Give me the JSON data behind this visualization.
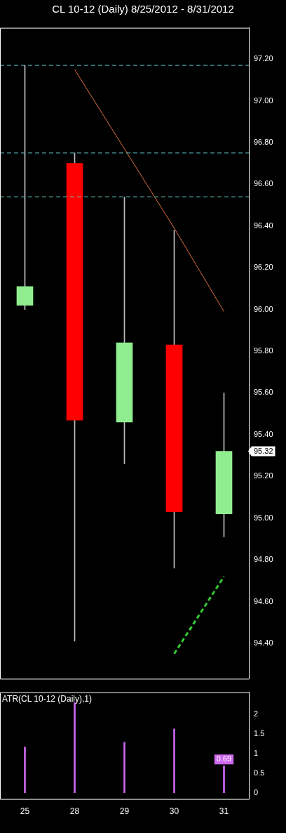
{
  "chart_data": [
    {
      "type": "candlestick",
      "title": "CL 10-12 (Daily)  8/25/2012 - 8/31/2012",
      "categories": [
        "25",
        "28",
        "29",
        "30",
        "31"
      ],
      "ohlc": [
        [
          96.02,
          97.17,
          96.0,
          96.11
        ],
        [
          96.7,
          96.75,
          94.41,
          95.47
        ],
        [
          95.46,
          96.54,
          95.26,
          95.84
        ],
        [
          95.83,
          96.38,
          94.76,
          95.03
        ],
        [
          95.02,
          95.6,
          94.91,
          95.32
        ]
      ],
      "colors": [
        "#90ee90",
        "#ff0000",
        "#90ee90",
        "#ff0000",
        "#90ee90"
      ],
      "series": [
        {
          "type": "line",
          "color": "#e07040",
          "values": [
            null,
            97.15,
            96.77,
            96.39,
            95.99
          ]
        },
        {
          "type": "line",
          "color": "#33cc33",
          "line_style": "dashed",
          "values": [
            null,
            null,
            null,
            94.35,
            94.72
          ]
        }
      ],
      "ref_lines": [
        {
          "axis": "y",
          "value": 97.17,
          "color": "#66cccc",
          "line_style": "dashed"
        },
        {
          "axis": "y",
          "value": 96.75,
          "color": "#66cccc",
          "line_style": "dashed"
        },
        {
          "axis": "y",
          "value": 96.54,
          "color": "#66cccc",
          "line_style": "dashed"
        }
      ],
      "annotations": [
        "95.32"
      ],
      "ylim": [
        94.23,
        97.35
      ],
      "yticks": [
        {
          "value": 94.4,
          "label": "94.40"
        },
        {
          "value": 94.6,
          "label": "94.60"
        },
        {
          "value": 94.8,
          "label": "94.80"
        },
        {
          "value": 95.0,
          "label": "95.00"
        },
        {
          "value": 95.2,
          "label": "95.20"
        },
        {
          "value": 95.4,
          "label": "95.40"
        },
        {
          "value": 95.6,
          "label": "95.60"
        },
        {
          "value": 95.8,
          "label": "95.80"
        },
        {
          "value": 96.0,
          "label": "96.00"
        },
        {
          "value": 96.2,
          "label": "96.20"
        },
        {
          "value": 96.4,
          "label": "96.40"
        },
        {
          "value": 96.6,
          "label": "96.60"
        },
        {
          "value": 96.8,
          "label": "96.80"
        },
        {
          "value": 97.0,
          "label": "97.00"
        },
        {
          "value": 97.2,
          "label": "97.20"
        }
      ],
      "tick_labels": "y",
      "grid": false,
      "legend": false
    },
    {
      "type": "bar",
      "title": "ATR(CL 10-12 (Daily),1)",
      "categories": [
        "25",
        "28",
        "29",
        "30",
        "31"
      ],
      "values": [
        1.17,
        2.3,
        1.29,
        1.63,
        0.69
      ],
      "color": "#cc66ee",
      "value_labels": [
        null,
        null,
        null,
        null,
        "0.69"
      ],
      "ylim": [
        -0.16,
        2.57
      ],
      "yticks": [
        0,
        0.5,
        1,
        1.5,
        2
      ],
      "grid": false,
      "legend": false
    }
  ]
}
